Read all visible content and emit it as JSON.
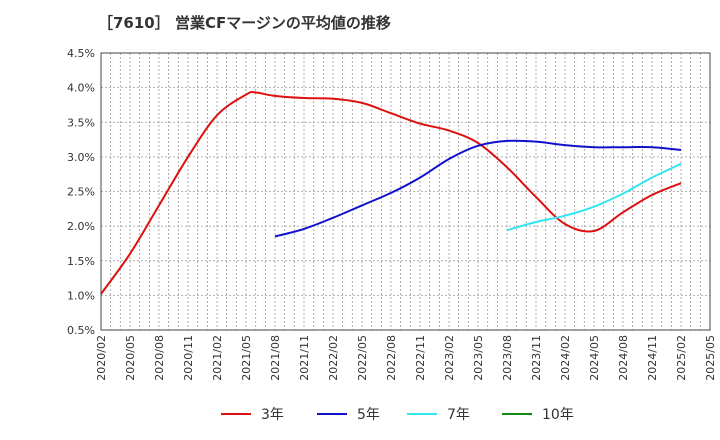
{
  "chart_data": {
    "type": "line",
    "title": "［7610］ 営業CFマージンの平均値の推移",
    "xlabel": "",
    "ylabel": "",
    "ylim": [
      0.5,
      4.5
    ],
    "y_ticks": [
      "0.5%",
      "1.0%",
      "1.5%",
      "2.0%",
      "2.5%",
      "3.0%",
      "3.5%",
      "4.0%",
      "4.5%"
    ],
    "x_ticks": [
      "2020/02",
      "2020/05",
      "2020/08",
      "2020/11",
      "2021/02",
      "2021/05",
      "2021/08",
      "2021/11",
      "2022/02",
      "2022/05",
      "2022/08",
      "2022/11",
      "2023/02",
      "2023/05",
      "2023/08",
      "2023/11",
      "2024/02",
      "2024/05",
      "2024/08",
      "2024/11",
      "2025/02",
      "2025/05"
    ],
    "grid": true,
    "legend_position": "bottom",
    "series": [
      {
        "name": "3年",
        "color": "#dd1111",
        "points": [
          [
            "2020/02",
            1.02
          ],
          [
            "2020/05",
            1.6
          ],
          [
            "2020/08",
            2.3
          ],
          [
            "2020/11",
            3.0
          ],
          [
            "2021/02",
            3.6
          ],
          [
            "2021/05",
            3.9
          ],
          [
            "2021/06",
            3.93
          ],
          [
            "2021/08",
            3.88
          ],
          [
            "2021/11",
            3.85
          ],
          [
            "2022/02",
            3.84
          ],
          [
            "2022/05",
            3.78
          ],
          [
            "2022/08",
            3.63
          ],
          [
            "2022/11",
            3.48
          ],
          [
            "2023/02",
            3.38
          ],
          [
            "2023/05",
            3.2
          ],
          [
            "2023/08",
            2.85
          ],
          [
            "2023/11",
            2.42
          ],
          [
            "2024/02",
            2.03
          ],
          [
            "2024/05",
            1.93
          ],
          [
            "2024/08",
            2.2
          ],
          [
            "2024/11",
            2.45
          ],
          [
            "2025/02",
            2.62
          ]
        ]
      },
      {
        "name": "5年",
        "color": "#1111cc",
        "points": [
          [
            "2021/08",
            1.85
          ],
          [
            "2021/11",
            1.96
          ],
          [
            "2022/02",
            2.12
          ],
          [
            "2022/05",
            2.3
          ],
          [
            "2022/08",
            2.48
          ],
          [
            "2022/11",
            2.7
          ],
          [
            "2023/02",
            2.97
          ],
          [
            "2023/05",
            3.16
          ],
          [
            "2023/08",
            3.23
          ],
          [
            "2023/11",
            3.22
          ],
          [
            "2024/02",
            3.17
          ],
          [
            "2024/05",
            3.14
          ],
          [
            "2024/08",
            3.14
          ],
          [
            "2024/11",
            3.14
          ],
          [
            "2025/02",
            3.1
          ]
        ]
      },
      {
        "name": "7年",
        "color": "#33e5f0",
        "points": [
          [
            "2023/08",
            1.94
          ],
          [
            "2023/11",
            2.06
          ],
          [
            "2024/02",
            2.15
          ],
          [
            "2024/05",
            2.28
          ],
          [
            "2024/08",
            2.47
          ],
          [
            "2024/11",
            2.7
          ],
          [
            "2025/02",
            2.9
          ]
        ]
      },
      {
        "name": "10年",
        "color": "#118811",
        "points": []
      }
    ]
  }
}
